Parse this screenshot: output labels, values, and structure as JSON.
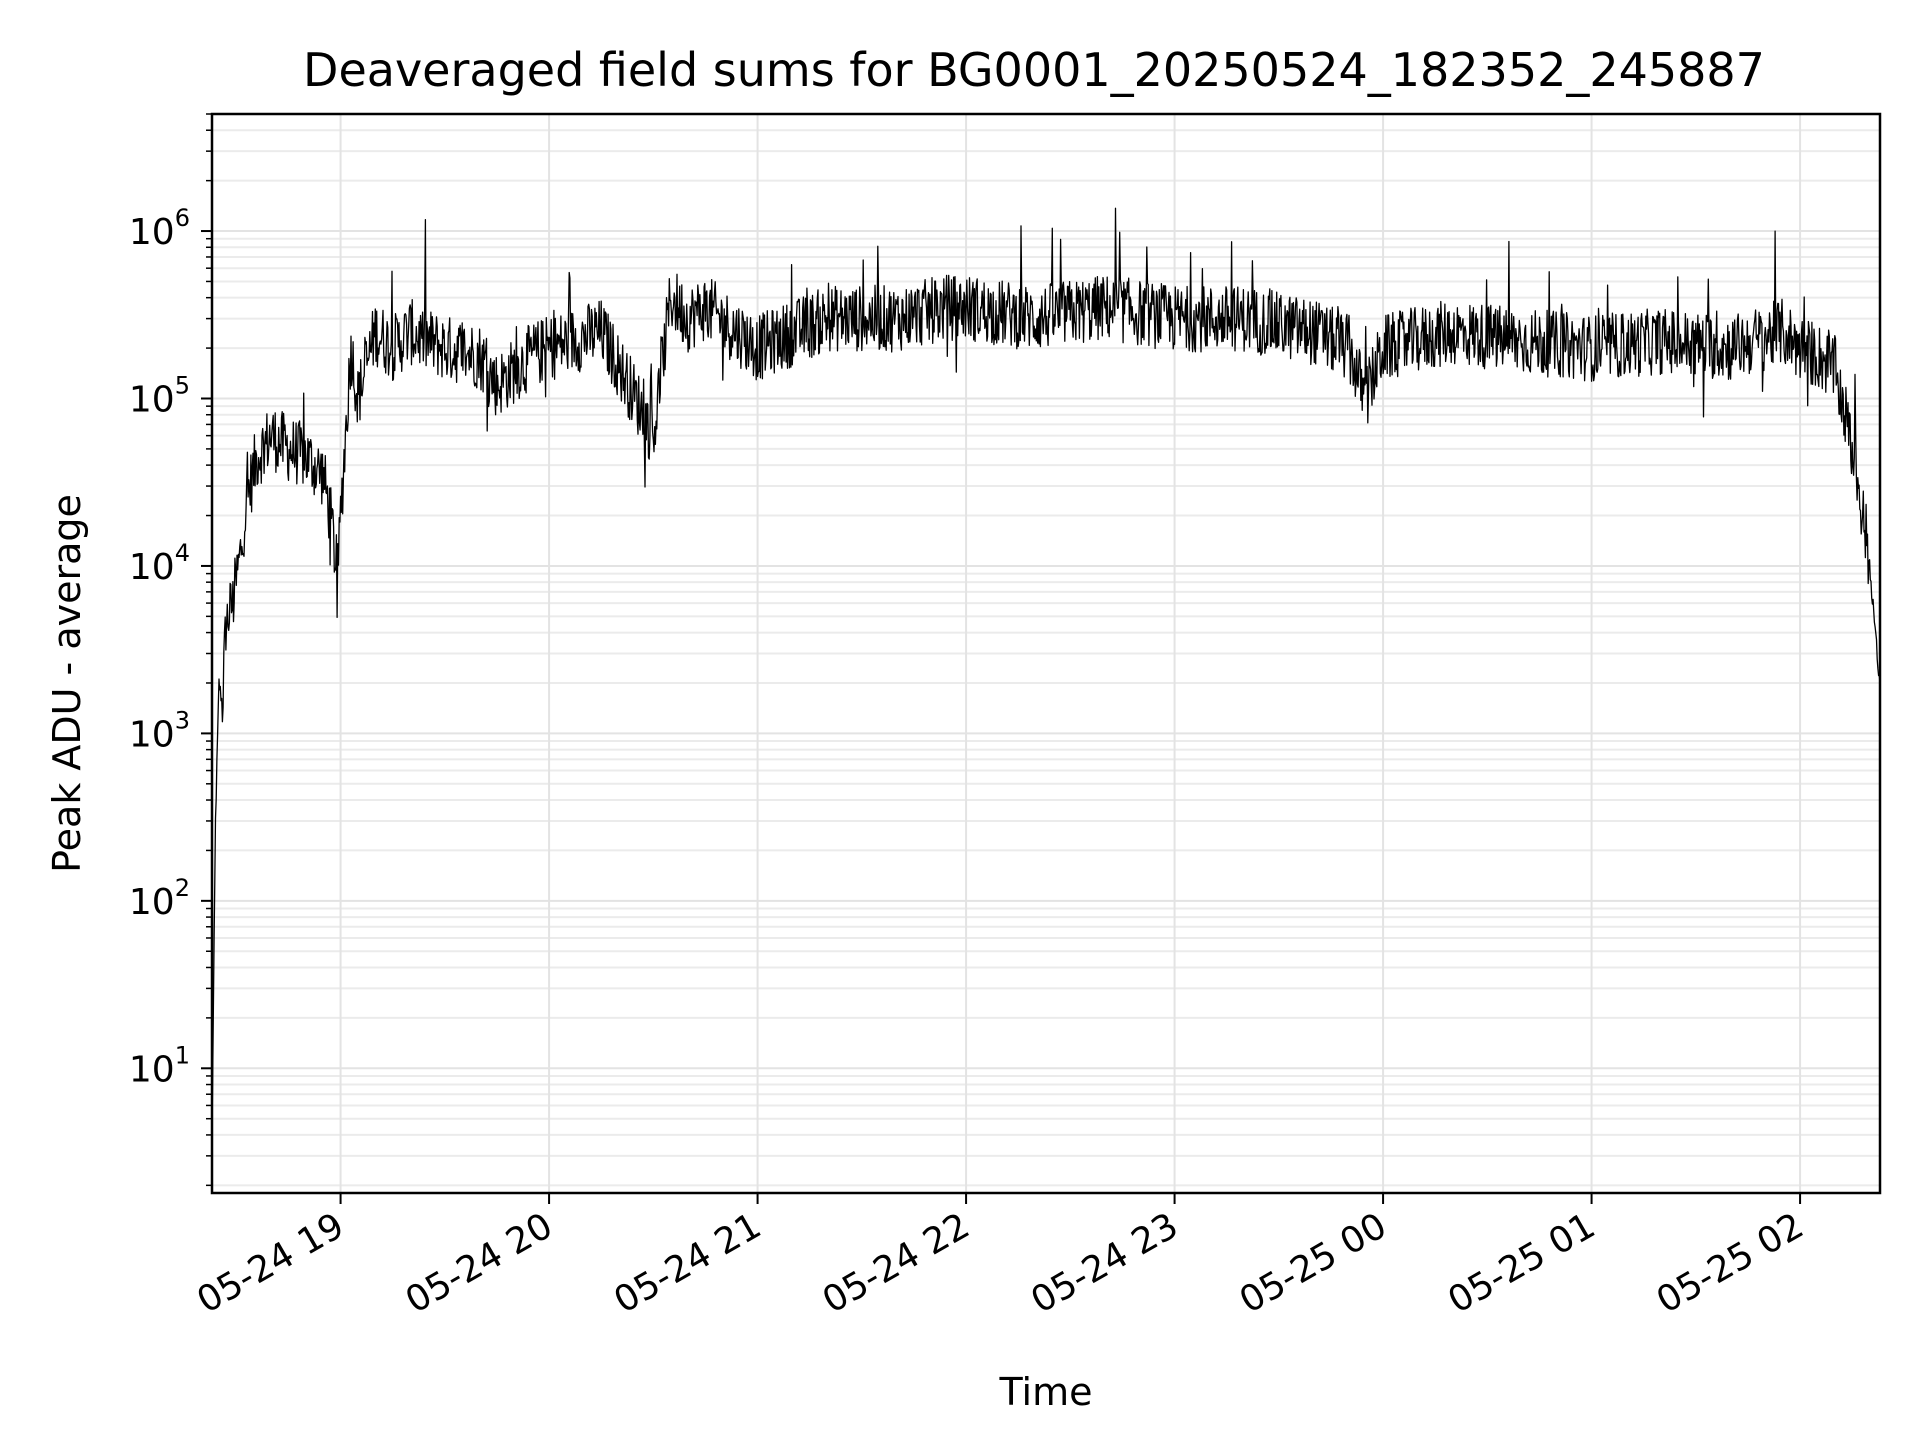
{
  "chart_data": {
    "type": "line",
    "title": "Deaveraged field sums for BG0001_20250524_182352_245887",
    "xlabel": "Time",
    "ylabel": "Peak ADU - average",
    "yscale": "log",
    "ylim": [
      1.8,
      5000000
    ],
    "xlim": [
      "05-24 18:23",
      "05-25 02:23"
    ],
    "grid": "major and minor",
    "line_color": "#000000",
    "x_ticks": [
      "05-24 19",
      "05-24 20",
      "05-24 21",
      "05-24 22",
      "05-24 23",
      "05-25 00",
      "05-25 01",
      "05-25 02"
    ],
    "x_tick_hours": [
      19,
      20,
      21,
      22,
      23,
      24,
      25,
      26
    ],
    "y_ticks": [
      {
        "base": "10",
        "exp": "1",
        "value": 10
      },
      {
        "base": "10",
        "exp": "2",
        "value": 100
      },
      {
        "base": "10",
        "exp": "3",
        "value": 1000
      },
      {
        "base": "10",
        "exp": "4",
        "value": 10000
      },
      {
        "base": "10",
        "exp": "5",
        "value": 100000
      },
      {
        "base": "10",
        "exp": "6",
        "value": 1000000
      }
    ],
    "series": [
      {
        "x": [
          "05-24 18:23",
          "05-24 18:24",
          "05-24 18:25",
          "05-24 18:26",
          "05-24 18:27",
          "05-24 18:29",
          "05-24 18:31",
          "05-24 18:33",
          "05-24 18:36",
          "05-24 18:40",
          "05-24 18:45",
          "05-24 18:50",
          "05-24 18:55",
          "05-24 18:58",
          "05-24 18:59",
          "05-24 19:00",
          "05-24 19:03",
          "05-24 19:05",
          "05-24 19:10",
          "05-24 19:15",
          "05-24 19:20",
          "05-24 19:25",
          "05-24 19:30",
          "05-24 19:40",
          "05-24 19:45",
          "05-24 19:55",
          "05-24 20:00",
          "05-24 20:15",
          "05-24 20:25",
          "05-24 20:30",
          "05-24 20:35",
          "05-24 20:40",
          "05-24 20:45",
          "05-24 21:00",
          "05-24 21:20",
          "05-24 21:40",
          "05-24 21:55",
          "05-24 22:00",
          "05-24 22:20",
          "05-24 22:40",
          "05-24 23:00",
          "05-24 23:20",
          "05-24 23:40",
          "05-24 23:50",
          "05-24 23:55",
          "05-25 00:00",
          "05-25 00:20",
          "05-25 00:40",
          "05-25 01:00",
          "05-25 01:20",
          "05-25 01:40",
          "05-25 01:55",
          "05-25 02:00",
          "05-25 02:05",
          "05-25 02:10",
          "05-25 02:13",
          "05-25 02:16",
          "05-25 02:19",
          "05-25 02:21",
          "05-25 02:23"
        ],
        "y": [
          4,
          300,
          2000,
          1500,
          4500,
          6000,
          11000,
          25000,
          45000,
          60000,
          50000,
          45000,
          35000,
          15000,
          7000,
          20000,
          200000,
          100000,
          250000,
          200000,
          250000,
          220000,
          200000,
          180000,
          120000,
          180000,
          200000,
          250000,
          100000,
          60000,
          400000,
          300000,
          350000,
          200000,
          300000,
          300000,
          350000,
          350000,
          300000,
          350000,
          300000,
          300000,
          250000,
          200000,
          100000,
          200000,
          250000,
          220000,
          200000,
          220000,
          200000,
          250000,
          200000,
          180000,
          150000,
          80000,
          40000,
          15000,
          6000,
          1800
        ]
      }
    ]
  }
}
